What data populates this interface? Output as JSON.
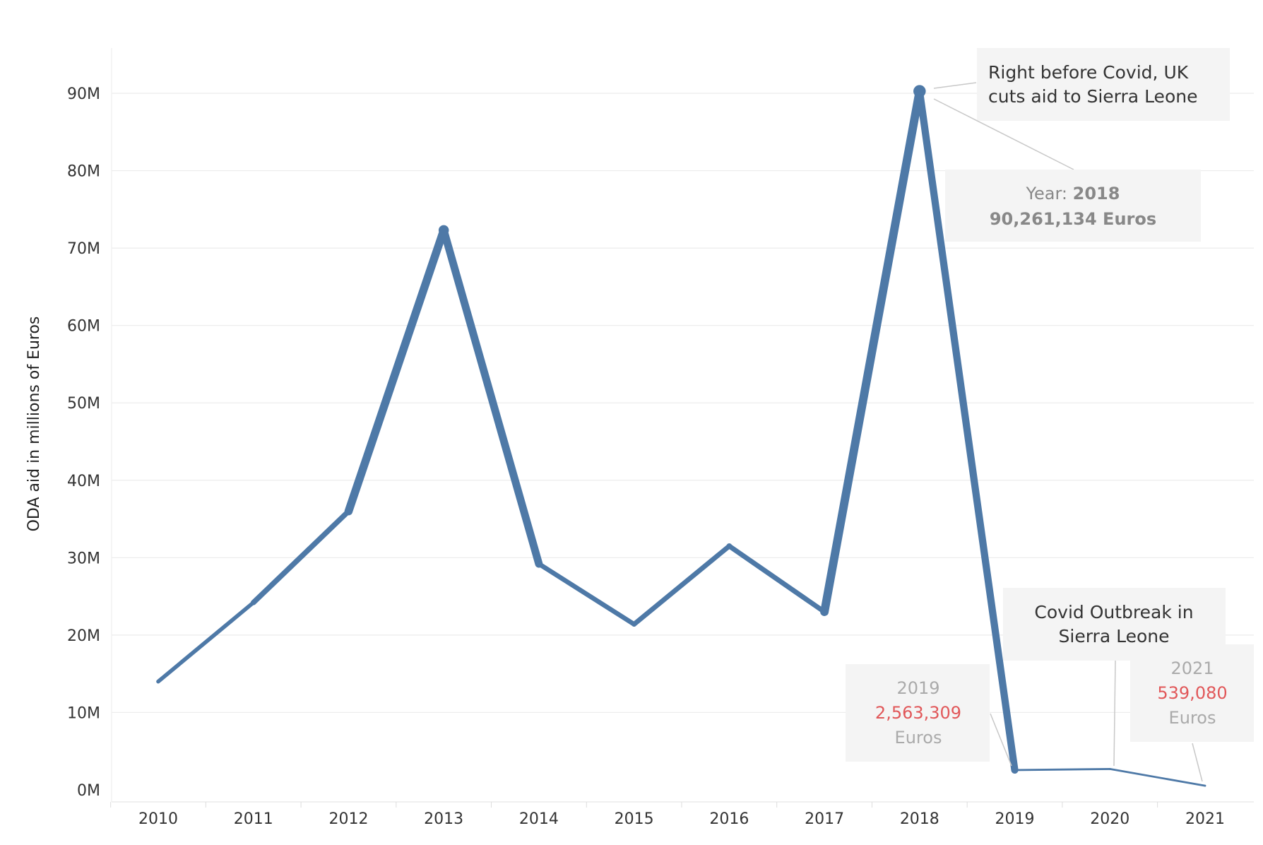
{
  "chart_data": {
    "type": "line",
    "xlabel": "",
    "ylabel": "ODA aid in millions of Euros",
    "x": [
      "2010",
      "2011",
      "2012",
      "2013",
      "2014",
      "2015",
      "2016",
      "2017",
      "2018",
      "2019",
      "2020",
      "2021"
    ],
    "values": [
      14000000,
      24200000,
      36000000,
      72300000,
      29200000,
      21400000,
      31500000,
      23000000,
      90261134,
      2563309,
      2700000,
      539080
    ],
    "y_ticks": [
      "0M",
      "10M",
      "20M",
      "30M",
      "40M",
      "50M",
      "60M",
      "70M",
      "80M",
      "90M"
    ],
    "ylim": [
      0,
      95000000
    ],
    "grid": true,
    "line_color": "#4e79a7",
    "annotations": {
      "peak_note": [
        "Right before Covid, UK",
        "cuts aid to Sierra Leone"
      ],
      "peak_year_label": "Year:",
      "peak_year": "2018",
      "peak_value": "90,261,134 Euros",
      "covid_note": [
        "Covid Outbreak in",
        "Sierra Leone"
      ],
      "y2019_year": "2019",
      "y2019_value": "2,563,309",
      "y2019_unit": "Euros",
      "y2021_year": "2021",
      "y2021_value": "539,080",
      "y2021_unit": "Euros"
    },
    "highlight_color": "#e15759"
  }
}
